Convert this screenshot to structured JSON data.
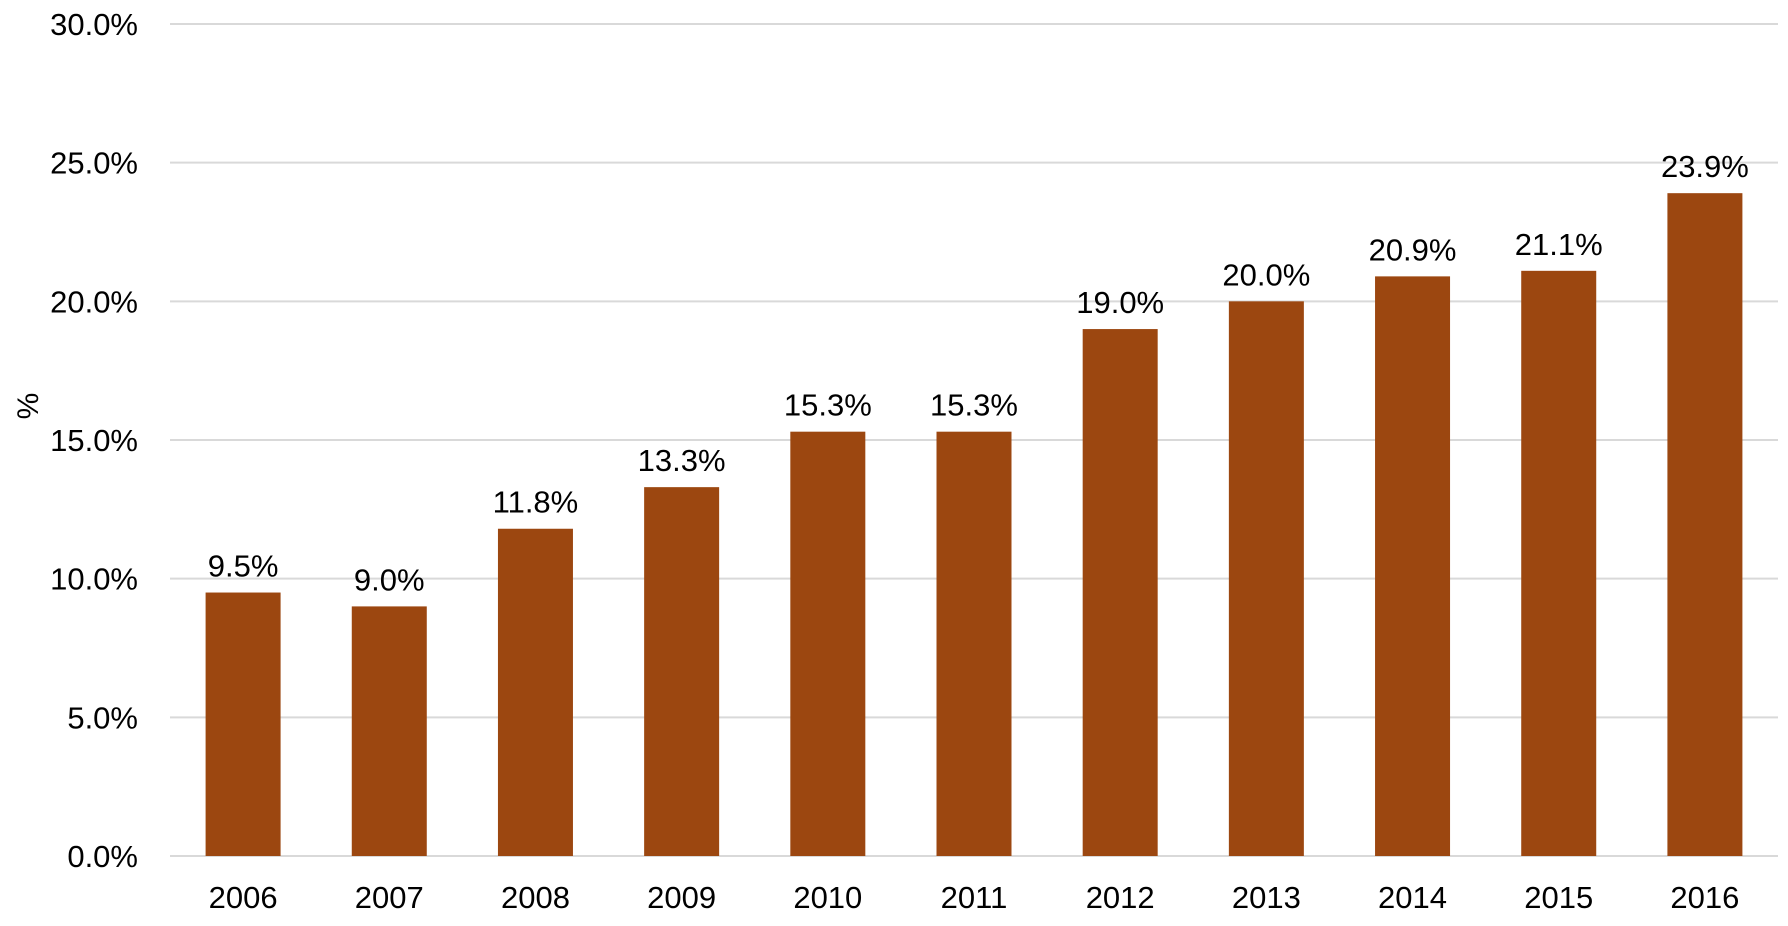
{
  "chart_data": {
    "type": "bar",
    "title": "",
    "xlabel": "",
    "ylabel": "%",
    "categories": [
      "2006",
      "2007",
      "2008",
      "2009",
      "2010",
      "2011",
      "2012",
      "2013",
      "2014",
      "2015",
      "2016"
    ],
    "values": [
      9.5,
      9.0,
      11.8,
      13.3,
      15.3,
      15.3,
      19.0,
      20.0,
      20.9,
      21.1,
      23.9
    ],
    "data_labels": [
      "9.5%",
      "9.0%",
      "11.8%",
      "13.3%",
      "15.3%",
      "15.3%",
      "19.0%",
      "20.0%",
      "20.9%",
      "21.1%",
      "23.9%"
    ],
    "ylim": [
      0,
      30
    ],
    "yticks": [
      0,
      5,
      10,
      15,
      20,
      25,
      30
    ],
    "ytick_labels": [
      "0.0%",
      "5.0%",
      "10.0%",
      "15.0%",
      "20.0%",
      "25.0%",
      "30.0%"
    ],
    "grid": true,
    "legend": "none",
    "colors": {
      "bar": "#9C4710",
      "grid": "#d9d9d9",
      "text": "#000000"
    }
  }
}
